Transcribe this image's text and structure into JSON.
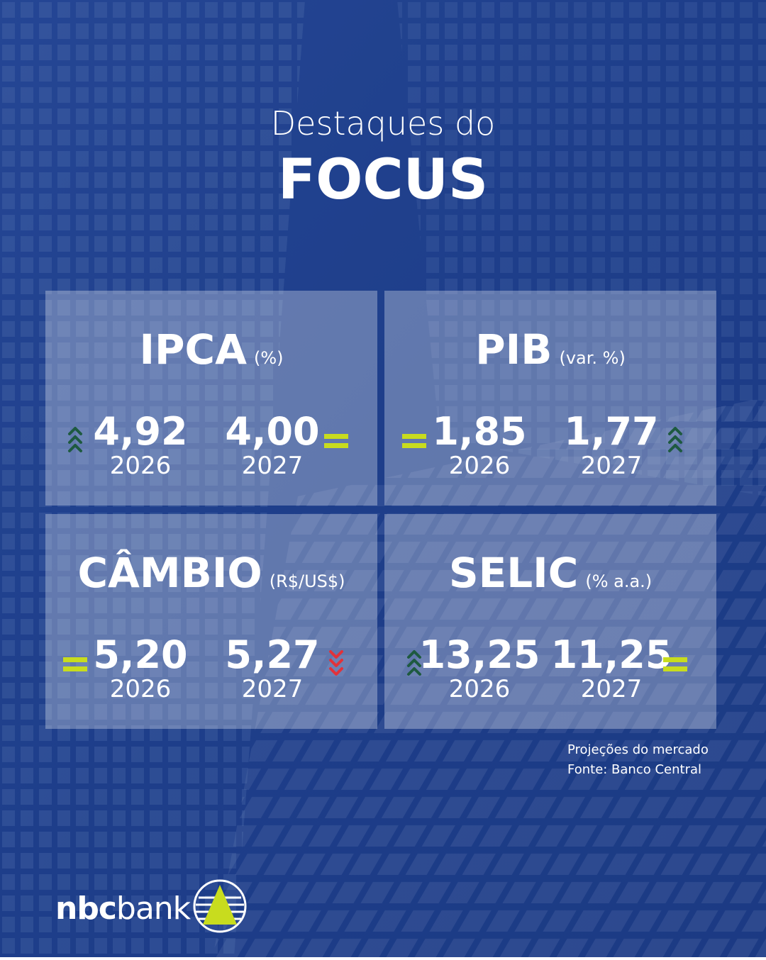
{
  "header": {
    "line1": "Destaques do",
    "line2": "FOCUS"
  },
  "cards": [
    {
      "title": "IPCA",
      "unit": "(%)",
      "items": [
        {
          "value": "4,92",
          "year": "2026",
          "trend": "up"
        },
        {
          "value": "4,00",
          "year": "2027",
          "trend": "equal"
        }
      ]
    },
    {
      "title": "PIB",
      "unit": "(var. %)",
      "items": [
        {
          "value": "1,85",
          "year": "2026",
          "trend": "equal"
        },
        {
          "value": "1,77",
          "year": "2027",
          "trend": "up"
        }
      ]
    },
    {
      "title": "CÂMBIO",
      "unit": "(R$/US$)",
      "items": [
        {
          "value": "5,20",
          "year": "2026",
          "trend": "equal"
        },
        {
          "value": "5,27",
          "year": "2027",
          "trend": "down"
        }
      ]
    },
    {
      "title": "SELIC",
      "unit": "(% a.a.)",
      "items": [
        {
          "value": "13,25",
          "year": "2026",
          "trend": "up"
        },
        {
          "value": "11,25",
          "year": "2027",
          "trend": "equal"
        }
      ]
    }
  ],
  "footnote": {
    "line1": "Projeções do mercado",
    "line2": "Fonte: Banco Central"
  },
  "logo": {
    "bold": "nbc",
    "regular": "bank"
  }
}
